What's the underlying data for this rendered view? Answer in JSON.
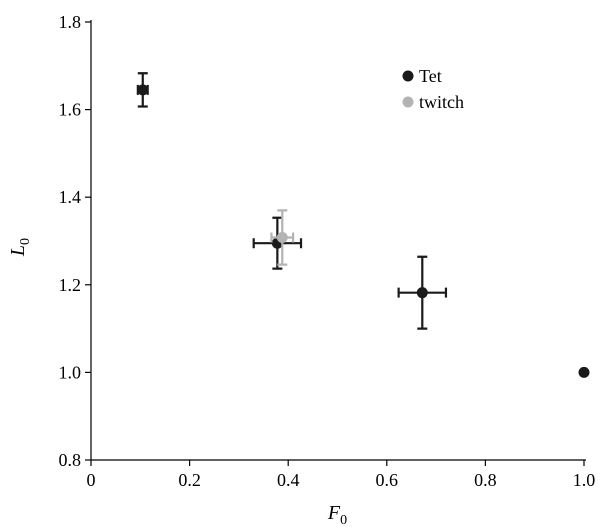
{
  "chart_data": {
    "type": "scatter",
    "title": "",
    "xlabel": "F",
    "xlabel_sub": "0",
    "ylabel": "L",
    "ylabel_sub": "0",
    "xlim": [
      0,
      1.0
    ],
    "ylim": [
      0.8,
      1.8
    ],
    "x_ticks": [
      "0",
      "0.2",
      "0.4",
      "0.6",
      "0.8",
      "1.0"
    ],
    "y_ticks": [
      "0.8",
      "1.0",
      "1.2",
      "1.4",
      "1.6",
      "1.8"
    ],
    "grid": false,
    "legend_position": "top-right",
    "series": [
      {
        "name": "Tet",
        "color": "#1a1a1a",
        "points": [
          {
            "x": 0.105,
            "y": 1.645,
            "xerr": 0.01,
            "yerr": 0.038
          },
          {
            "x": 0.378,
            "y": 1.295,
            "xerr": 0.048,
            "yerr": 0.058
          },
          {
            "x": 0.672,
            "y": 1.182,
            "xerr": 0.048,
            "yerr": 0.082
          },
          {
            "x": 1.0,
            "y": 1.0,
            "xerr": 0,
            "yerr": 0
          }
        ]
      },
      {
        "name": "twitch",
        "color": "#b3b3b3",
        "points": [
          {
            "x": 0.388,
            "y": 1.308,
            "xerr": 0.022,
            "yerr": 0.062
          }
        ]
      }
    ]
  }
}
